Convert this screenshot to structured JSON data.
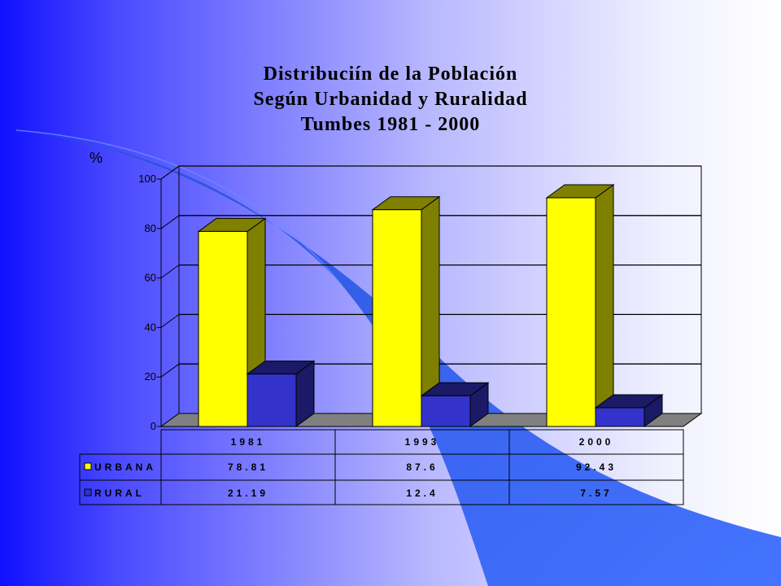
{
  "colors": {
    "bg_left": "#1818ff",
    "bg_right": "#ffffff",
    "swoosh": "#2a4fd0",
    "urbana": "#ffff00",
    "urbana_side": "#7f7f00",
    "rural": "#3333cc",
    "rural_side": "#1a1a66",
    "floor": "#808080"
  },
  "chart_data": {
    "type": "bar",
    "title": [
      "Distribuciín de la Población",
      "Según Urbanidad y Ruralidad",
      "Tumbes 1981 - 2000"
    ],
    "ylabel": "%",
    "ylim": [
      0,
      100
    ],
    "yticks": [
      0,
      20,
      40,
      60,
      80,
      100
    ],
    "categories": [
      "1981",
      "1993",
      "2000"
    ],
    "series": [
      {
        "name": "URBANA",
        "values": [
          78.81,
          87.6,
          92.43
        ],
        "labels": [
          "78.81",
          "87.6",
          "92.43"
        ]
      },
      {
        "name": "RURAL",
        "values": [
          21.19,
          12.4,
          7.57
        ],
        "labels": [
          "21.19",
          "12.4",
          "7.57"
        ]
      }
    ],
    "grid": true,
    "legend": "data-table-below",
    "data_table": true
  }
}
